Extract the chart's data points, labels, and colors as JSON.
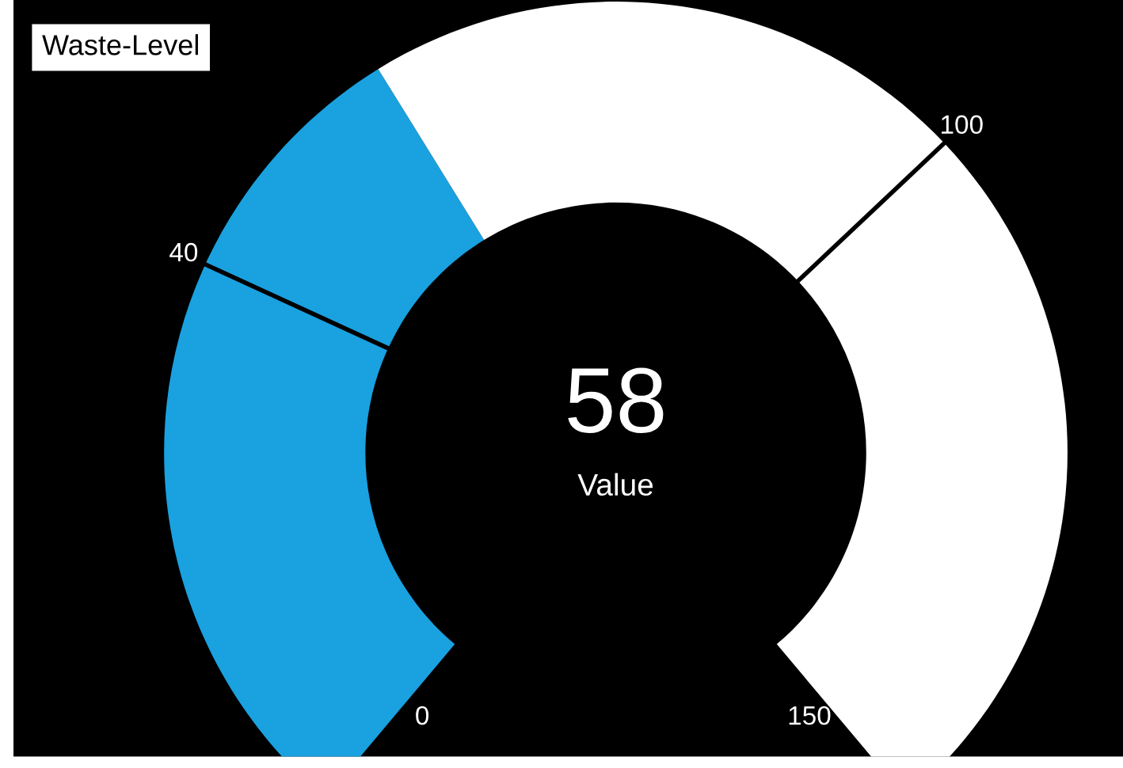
{
  "chart_data": {
    "type": "other",
    "title": "Waste-Level",
    "categories": [
      "Value"
    ],
    "values": [
      58
    ],
    "value_labels": [
      "58"
    ],
    "annotations": [
      "0",
      "40",
      "100",
      "150"
    ],
    "colors": [
      "#1aa1e0"
    ]
  }
}
